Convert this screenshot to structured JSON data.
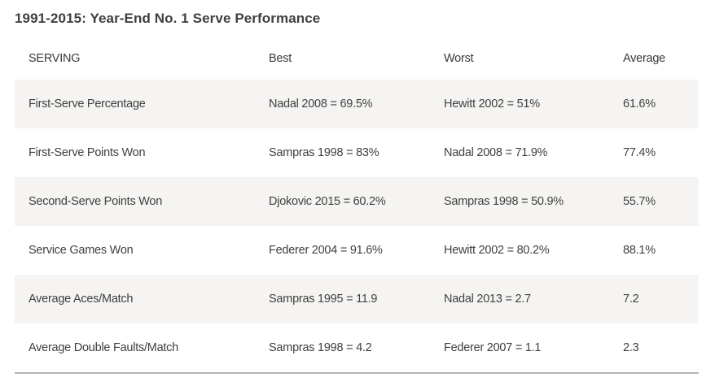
{
  "page": {
    "title": "1991-2015: Year-End No. 1 Serve Performance"
  },
  "colors": {
    "title_text": "#3f3f3f",
    "body_text": "#404040",
    "row_stripe_bg": "#f5f4f2",
    "row_plain_bg": "#ffffff",
    "bottom_border": "#b5b5b5",
    "page_background": "#ffffff"
  },
  "chart_data": {
    "type": "table",
    "title": "1991-2015: Year-End No. 1 Serve Performance",
    "columns": [
      "SERVING",
      "Best",
      "Worst",
      "Average"
    ],
    "rows": [
      {
        "serving": "First-Serve Percentage",
        "best": "Nadal 2008 = 69.5%",
        "worst": "Hewitt 2002 = 51%",
        "average": "61.6%"
      },
      {
        "serving": "First-Serve Points Won",
        "best": "Sampras 1998 = 83%",
        "worst": "Nadal 2008 = 71.9%",
        "average": "77.4%"
      },
      {
        "serving": "Second-Serve Points Won",
        "best": "Djokovic 2015 = 60.2%",
        "worst": "Sampras 1998 = 50.9%",
        "average": "55.7%"
      },
      {
        "serving": "Service Games Won",
        "best": "Federer 2004 = 91.6%",
        "worst": "Hewitt 2002 = 80.2%",
        "average": "88.1%"
      },
      {
        "serving": "Average Aces/Match",
        "best": "Sampras 1995 = 11.9",
        "worst": "Nadal 2013 = 2.7",
        "average": "7.2"
      },
      {
        "serving": "Average Double Faults/Match",
        "best": "Sampras 1998 = 4.2",
        "worst": "Federer 2007 = 1.1",
        "average": "2.3"
      }
    ],
    "layout": {
      "striped_rows": "odd rows shaded starting with first data row",
      "legend": "none",
      "grid": "off"
    }
  }
}
